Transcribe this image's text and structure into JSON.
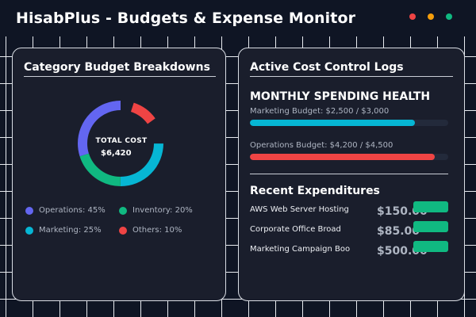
{
  "header": {
    "title": "HisabPlus - Budgets & Expense Monitor",
    "dot_colors": [
      "#ef4444",
      "#f59e0b",
      "#10b981"
    ]
  },
  "breakdown": {
    "title": "Category Budget Breakdowns",
    "total_label": "TOTAL COST",
    "total_value": "$6,420",
    "chart_data": {
      "type": "pie",
      "categories": [
        "Operations",
        "Inventory",
        "Marketing",
        "Others"
      ],
      "values": [
        45,
        20,
        25,
        10
      ],
      "colors": [
        "#6366f1",
        "#10b981",
        "#06b6d4",
        "#ef4444"
      ]
    },
    "legend": [
      {
        "label": "Operations: 45%",
        "color": "#6366f1"
      },
      {
        "label": "Inventory: 20%",
        "color": "#10b981"
      },
      {
        "label": "Marketing: 25%",
        "color": "#06b6d4"
      },
      {
        "label": "Others: 10%",
        "color": "#ef4444"
      }
    ]
  },
  "logs": {
    "title": "Active Cost Control Logs",
    "health_title": "MONTHLY SPENDING HEALTH",
    "budgets": [
      {
        "label": "Marketing Budget: $2,500 / $3,000",
        "fraction": 0.83,
        "color": "#06b6d4"
      },
      {
        "label": "Operations Budget: $4,200 / $4,500",
        "fraction": 0.93,
        "color": "#ef4444"
      }
    ],
    "recent_title": "Recent Expenditures",
    "expenditures": [
      {
        "name": "AWS Web Server Hosting",
        "amount": "$150.00",
        "badge_color": "#10b981"
      },
      {
        "name": "Corporate Office Broad",
        "amount": "$85.00",
        "badge_color": "#10b981"
      },
      {
        "name": "Marketing Campaign Boo",
        "amount": "$500.00",
        "badge_color": "#10b981"
      }
    ]
  }
}
